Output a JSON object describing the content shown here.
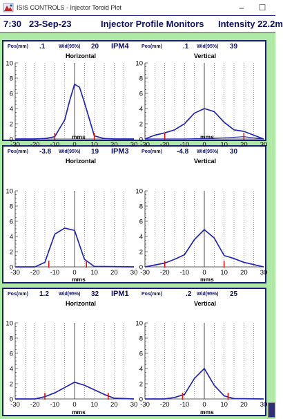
{
  "window": {
    "title": "ISIS CONTROLS - Injector Toroid Plot",
    "minimize_glyph": "–",
    "maximize_glyph": "☐"
  },
  "header": {
    "time": "7:30",
    "date": "23-Sep-23",
    "title": "Injector Profile Monitors",
    "intensity": "Intensity 22.2m"
  },
  "axis": {
    "x_ticks": [
      "-30",
      "-20",
      "-10",
      "0",
      "10",
      "20",
      "30"
    ],
    "y_ticks": [
      "0",
      "2",
      "4",
      "6",
      "8",
      "10"
    ],
    "xlabel": "mms"
  },
  "colors": {
    "background": "#aeeaa6",
    "frame": "#1c1c70",
    "label": "#101060",
    "trace": "#2323b4",
    "marker": "#e01010"
  },
  "monitors": [
    {
      "name": "IPM4",
      "horizontal": {
        "pos_label": "Pos(mm)",
        "pos": ".1",
        "wid_label": "Wid(95%)",
        "wid": "20",
        "plane": "Horizontal"
      },
      "vertical": {
        "pos_label": "Pos(mm)",
        "pos": ".1",
        "wid_label": "Wid(95%)",
        "wid": "39",
        "plane": "Vertical"
      }
    },
    {
      "name": "IPM3",
      "horizontal": {
        "pos_label": "Pos(mm)",
        "pos": "-3.8",
        "wid_label": "Wid(95%)",
        "wid": "19",
        "plane": "Horizontal"
      },
      "vertical": {
        "pos_label": "Pos(mm)",
        "pos": "-4.8",
        "wid_label": "Wid(95%)",
        "wid": "30",
        "plane": "Vertical"
      }
    },
    {
      "name": "IPM1",
      "horizontal": {
        "pos_label": "Pos(mm)",
        "pos": "1.2",
        "wid_label": "Wid(95%)",
        "wid": "32",
        "plane": "Horizontal"
      },
      "vertical": {
        "pos_label": "Pos(mm)",
        "pos": ".2",
        "wid_label": "Wid(95%)",
        "wid": "25",
        "plane": "Vertical"
      }
    }
  ],
  "chart_data": [
    {
      "type": "line",
      "xlim": [
        -30,
        30
      ],
      "ylim": [
        0,
        10
      ],
      "grid": true,
      "series": [
        {
          "x": [
            -30,
            -20,
            -15,
            -10,
            -5,
            -2.5,
            0,
            2.5,
            5,
            10,
            15,
            20,
            30
          ],
          "values": [
            0,
            0,
            0.05,
            0.3,
            2.5,
            5,
            7.2,
            6.8,
            4.8,
            0.4,
            0.05,
            0,
            0
          ]
        }
      ],
      "markers": [
        -10,
        10
      ]
    },
    {
      "type": "line",
      "xlim": [
        -30,
        30
      ],
      "ylim": [
        0,
        10
      ],
      "grid": true,
      "series": [
        {
          "x": [
            -30,
            -25,
            -20,
            -15,
            -10,
            -5,
            0,
            5,
            10,
            15,
            20,
            25,
            30
          ],
          "values": [
            0,
            0.5,
            0.8,
            1.2,
            2,
            3.4,
            4,
            3.6,
            2.2,
            1.2,
            1,
            0.5,
            0
          ]
        },
        {
          "x": [
            -30,
            -10,
            0,
            10,
            20,
            30
          ],
          "values": [
            0,
            0,
            0.05,
            0.15,
            0.3,
            0
          ]
        }
      ],
      "markers": [
        -20,
        20
      ]
    },
    {
      "type": "line",
      "xlim": [
        -30,
        30
      ],
      "ylim": [
        0,
        10
      ],
      "grid": true,
      "series": [
        {
          "x": [
            -30,
            -20,
            -15,
            -10,
            -5,
            0,
            5,
            10,
            30
          ],
          "values": [
            0,
            0,
            0.6,
            4.3,
            5.1,
            4.8,
            1,
            0.05,
            0
          ]
        }
      ],
      "markers": [
        -13,
        6
      ]
    },
    {
      "type": "line",
      "xlim": [
        -30,
        30
      ],
      "ylim": [
        0,
        10
      ],
      "grid": true,
      "series": [
        {
          "x": [
            -30,
            -20,
            -15,
            -10,
            -5,
            0,
            5,
            10,
            15,
            20,
            30
          ],
          "values": [
            0,
            0.5,
            1,
            1.6,
            3.6,
            4.9,
            3.8,
            1.5,
            1.1,
            0.6,
            0
          ]
        }
      ],
      "markers": [
        -20,
        10
      ]
    },
    {
      "type": "line",
      "xlim": [
        -30,
        30
      ],
      "ylim": [
        0,
        10
      ],
      "grid": true,
      "series": [
        {
          "x": [
            -30,
            -20,
            -15,
            -10,
            -5,
            0,
            5,
            10,
            15,
            20,
            30
          ],
          "values": [
            0,
            0,
            0.3,
            0.8,
            1.5,
            2.2,
            1.8,
            1.2,
            0.6,
            0.1,
            0
          ]
        }
      ],
      "markers": [
        -15,
        17
      ]
    },
    {
      "type": "line",
      "xlim": [
        -30,
        30
      ],
      "ylim": [
        0,
        10
      ],
      "grid": true,
      "series": [
        {
          "x": [
            -30,
            -20,
            -15,
            -10,
            -5,
            0,
            5,
            10,
            15,
            30
          ],
          "values": [
            0,
            0,
            0.2,
            0.6,
            2.7,
            4,
            1.8,
            0.4,
            0.05,
            0
          ]
        }
      ],
      "markers": [
        -11,
        12
      ]
    }
  ]
}
